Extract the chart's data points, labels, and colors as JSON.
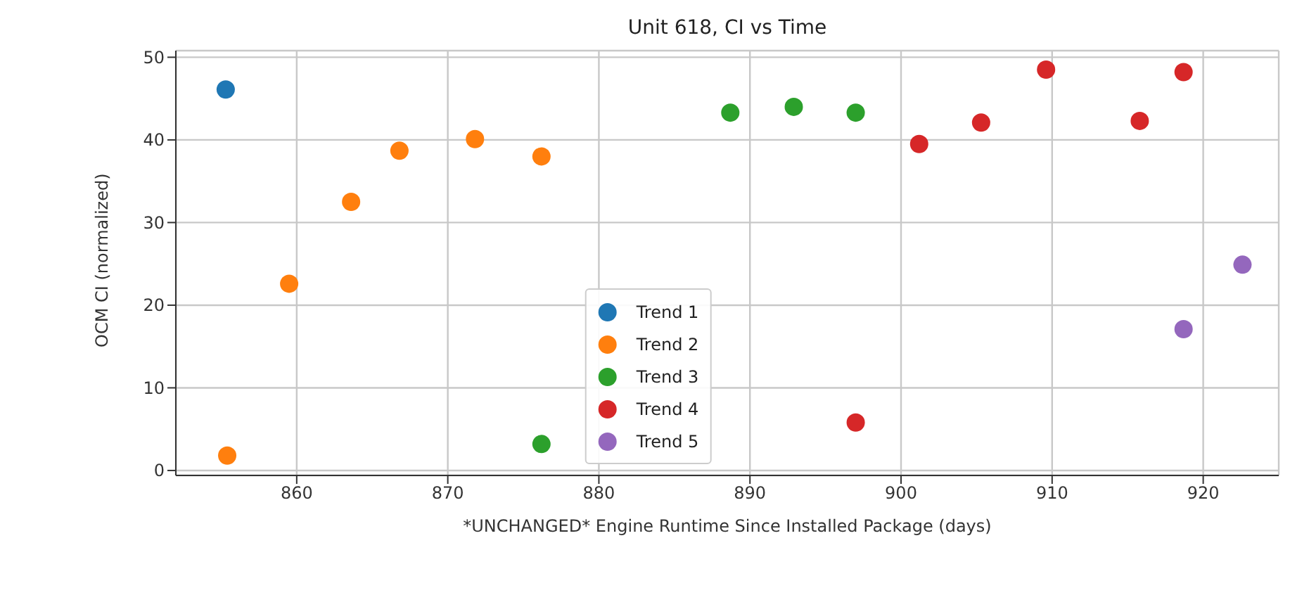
{
  "chart_data": {
    "type": "scatter",
    "title": "Unit 618, CI vs Time",
    "xlabel": "*UNCHANGED* Engine Runtime Since Installed Package (days)",
    "ylabel": "OCM CI (normalized)",
    "xlim": [
      852,
      925
    ],
    "xticks": [
      860,
      870,
      880,
      890,
      900,
      910,
      920
    ],
    "ylim": [
      -0.6,
      50.8
    ],
    "yticks": [
      0,
      10,
      20,
      30,
      40,
      50
    ],
    "grid": true,
    "legend": "bottom",
    "marker": "circle",
    "series": [
      {
        "name": "Trend 1",
        "color": "#1f77b4",
        "x": [
          855.3
        ],
        "values": [
          46.1
        ]
      },
      {
        "name": "Trend 2",
        "color": "#ff7f0e",
        "x": [
          855.4,
          859.5,
          863.6,
          866.8,
          871.8,
          876.2
        ],
        "values": [
          1.8,
          22.6,
          32.5,
          38.7,
          40.1,
          38.0
        ]
      },
      {
        "name": "Trend 3",
        "color": "#2ca02c",
        "x": [
          876.2,
          888.7,
          892.9,
          897.0
        ],
        "values": [
          3.2,
          43.3,
          44.0,
          43.3
        ]
      },
      {
        "name": "Trend 4",
        "color": "#d62728",
        "x": [
          897.0,
          901.2,
          905.3,
          909.6,
          915.8,
          918.7
        ],
        "values": [
          5.8,
          39.5,
          42.1,
          48.5,
          42.3,
          48.2
        ]
      },
      {
        "name": "Trend 5",
        "color": "#9467bd",
        "x": [
          918.7,
          922.6
        ],
        "values": [
          17.1,
          24.9
        ]
      }
    ]
  }
}
